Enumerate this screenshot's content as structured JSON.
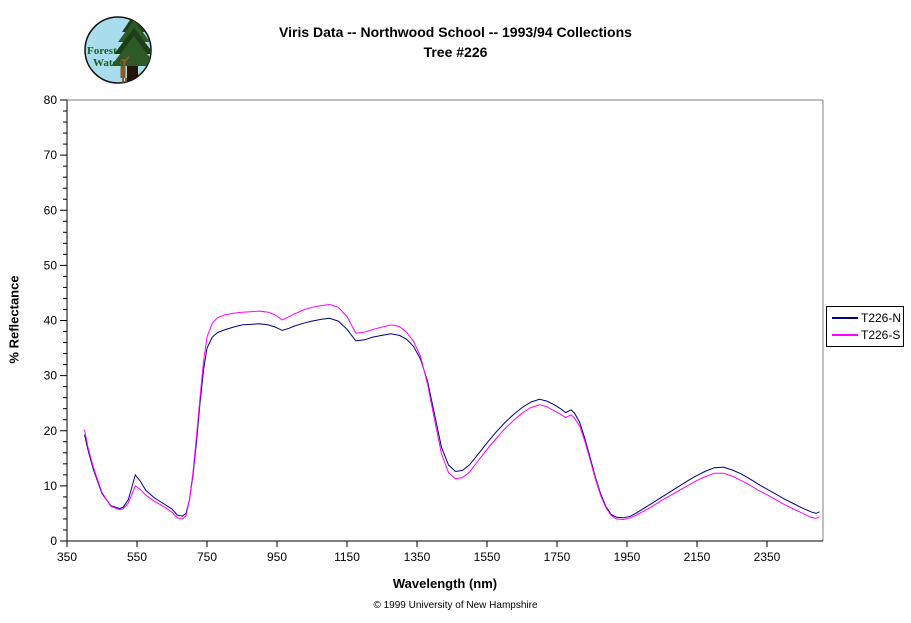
{
  "page": {
    "title_line1": "Viris Data -- Northwood School -- 1993/94 Collections",
    "title_line2": "Tree #226",
    "copyright": "© 1999 University of New Hampshire"
  },
  "logo": {
    "text_line1": "Forest",
    "text_line2": "Watch",
    "bg_color": "#a9dcec",
    "text_color": "#1f5c1f",
    "foliage_color": "#2d5a27",
    "foliage_dark": "#1d3f18",
    "trunk_color": "#241505",
    "figure_color": "#8a5a2a"
  },
  "legend": {
    "items": [
      {
        "label": "T226-N",
        "color": "#000080"
      },
      {
        "label": "T226-S",
        "color": "#ff00ff"
      }
    ]
  },
  "chart_data": {
    "type": "line",
    "title": "Viris Data -- Northwood School -- 1993/94 Collections / Tree #226",
    "xlabel": "Wavelength (nm)",
    "ylabel": "% Reflectance",
    "xlim": [
      350,
      2510
    ],
    "ylim": [
      0,
      80
    ],
    "x_ticks": [
      350,
      550,
      750,
      950,
      1150,
      1350,
      1550,
      1750,
      1950,
      2150,
      2350
    ],
    "y_ticks": [
      0,
      10,
      20,
      30,
      40,
      50,
      60,
      70,
      80
    ],
    "y_minor_step": 2,
    "grid": false,
    "legend_position": "right",
    "axis_color": "#000000",
    "border_color": "#808080",
    "x": [
      400,
      410,
      425,
      450,
      475,
      500,
      510,
      525,
      545,
      560,
      575,
      600,
      625,
      650,
      665,
      680,
      690,
      700,
      710,
      720,
      730,
      740,
      750,
      765,
      780,
      800,
      825,
      850,
      875,
      900,
      925,
      945,
      965,
      985,
      1000,
      1025,
      1050,
      1075,
      1100,
      1125,
      1150,
      1175,
      1200,
      1225,
      1250,
      1275,
      1300,
      1320,
      1340,
      1360,
      1380,
      1400,
      1420,
      1440,
      1460,
      1480,
      1500,
      1525,
      1550,
      1575,
      1600,
      1625,
      1650,
      1675,
      1700,
      1720,
      1740,
      1760,
      1775,
      1790,
      1800,
      1815,
      1830,
      1845,
      1860,
      1875,
      1890,
      1905,
      1920,
      1940,
      1960,
      1980,
      2000,
      2025,
      2050,
      2075,
      2100,
      2125,
      2150,
      2175,
      2200,
      2225,
      2250,
      2275,
      2300,
      2325,
      2350,
      2375,
      2400,
      2425,
      2450,
      2475,
      2490,
      2500
    ],
    "series": [
      {
        "name": "T226-N",
        "color": "#000080",
        "values": [
          19.3,
          16.5,
          13.0,
          8.6,
          6.4,
          5.9,
          6.1,
          7.5,
          12.0,
          10.8,
          9.2,
          7.8,
          6.8,
          5.8,
          4.7,
          4.5,
          5.0,
          7.5,
          12.0,
          18.0,
          25.0,
          31.0,
          35.0,
          37.0,
          37.8,
          38.3,
          38.8,
          39.2,
          39.3,
          39.4,
          39.2,
          38.8,
          38.2,
          38.6,
          39.0,
          39.5,
          39.9,
          40.2,
          40.4,
          39.9,
          38.4,
          36.3,
          36.5,
          37.0,
          37.3,
          37.6,
          37.3,
          36.6,
          35.3,
          33.0,
          29.0,
          23.0,
          17.0,
          13.8,
          12.6,
          12.8,
          13.8,
          15.8,
          17.8,
          19.7,
          21.4,
          22.9,
          24.2,
          25.2,
          25.7,
          25.4,
          24.8,
          24.0,
          23.3,
          23.8,
          23.2,
          21.5,
          18.5,
          15.0,
          11.5,
          8.5,
          6.2,
          4.8,
          4.3,
          4.2,
          4.5,
          5.2,
          6.0,
          7.0,
          8.0,
          9.0,
          10.0,
          11.0,
          11.9,
          12.7,
          13.3,
          13.4,
          12.9,
          12.2,
          11.3,
          10.3,
          9.4,
          8.5,
          7.6,
          6.8,
          6.0,
          5.3,
          5.0,
          5.3
        ]
      },
      {
        "name": "T226-S",
        "color": "#ff00ff",
        "values": [
          20.2,
          17.0,
          13.4,
          8.8,
          6.3,
          5.7,
          5.8,
          6.9,
          10.0,
          9.3,
          8.3,
          7.2,
          6.3,
          5.2,
          4.2,
          4.0,
          4.6,
          7.5,
          12.5,
          19.0,
          26.0,
          32.5,
          37.0,
          39.5,
          40.5,
          41.0,
          41.3,
          41.5,
          41.6,
          41.7,
          41.5,
          41.0,
          40.1,
          40.7,
          41.2,
          41.9,
          42.4,
          42.7,
          42.9,
          42.4,
          40.7,
          37.7,
          37.9,
          38.4,
          38.8,
          39.2,
          38.9,
          37.9,
          36.2,
          33.5,
          28.5,
          22.0,
          15.8,
          12.4,
          11.3,
          11.5,
          12.5,
          14.6,
          16.6,
          18.5,
          20.3,
          21.8,
          23.2,
          24.2,
          24.7,
          24.4,
          23.7,
          23.0,
          22.4,
          22.9,
          22.3,
          20.8,
          18.0,
          14.6,
          11.2,
          8.2,
          6.0,
          4.6,
          4.0,
          3.9,
          4.2,
          4.8,
          5.5,
          6.4,
          7.4,
          8.3,
          9.2,
          10.1,
          11.0,
          11.7,
          12.3,
          12.3,
          11.8,
          11.0,
          10.2,
          9.2,
          8.4,
          7.5,
          6.6,
          5.8,
          5.1,
          4.3,
          4.1,
          4.4
        ]
      }
    ]
  }
}
